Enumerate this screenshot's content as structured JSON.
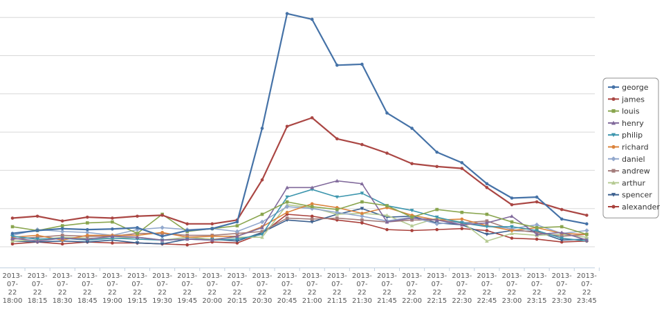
{
  "chart_data": {
    "type": "line",
    "title": "",
    "xlabel": "",
    "ylabel": "",
    "grid": true,
    "legend_position": "right",
    "ylim": [
      0,
      180
    ],
    "categories": [
      [
        "2013-",
        "07-",
        "22",
        "18:00"
      ],
      [
        "2013-",
        "07-",
        "22",
        "18:15"
      ],
      [
        "2013-",
        "07-",
        "22",
        "18:30"
      ],
      [
        "2013-",
        "07-",
        "22",
        "18:45"
      ],
      [
        "2013-",
        "07-",
        "22",
        "19:00"
      ],
      [
        "2013-",
        "07-",
        "22",
        "19:15"
      ],
      [
        "2013-",
        "07-",
        "22",
        "19:30"
      ],
      [
        "2013-",
        "07-",
        "22",
        "19:45"
      ],
      [
        "2013-",
        "07-",
        "22",
        "20:00"
      ],
      [
        "2013-",
        "07-",
        "22",
        "20:15"
      ],
      [
        "2013-",
        "07-",
        "22",
        "20:30"
      ],
      [
        "2013-",
        "07-",
        "22",
        "20:45"
      ],
      [
        "2013-",
        "07-",
        "22",
        "21:00"
      ],
      [
        "2013-",
        "07-",
        "22",
        "21:15"
      ],
      [
        "2013-",
        "07-",
        "22",
        "21:30"
      ],
      [
        "2013-",
        "07-",
        "22",
        "21:45"
      ],
      [
        "2013-",
        "07-",
        "22",
        "22:00"
      ],
      [
        "2013-",
        "07-",
        "22",
        "22:15"
      ],
      [
        "2013-",
        "07-",
        "22",
        "22:30"
      ],
      [
        "2013-",
        "07-",
        "22",
        "22:45"
      ],
      [
        "2013-",
        "07-",
        "22",
        "23:00"
      ],
      [
        "2013-",
        "07-",
        "22",
        "23:15"
      ],
      [
        "2013-",
        "07-",
        "22",
        "23:30"
      ],
      [
        "2013-",
        "07-",
        "22",
        "23:45"
      ]
    ],
    "series": [
      {
        "name": "george",
        "color": "#4572A7",
        "marker": "circle",
        "values": [
          7,
          8.5,
          9.5,
          9,
          9.3,
          10,
          5.5,
          8.5,
          9.5,
          13,
          62,
          122,
          119,
          95,
          95.5,
          70,
          62,
          49.5,
          44,
          33,
          25.5,
          26,
          14.5,
          12
        ]
      },
      {
        "name": "james",
        "color": "#AA4643",
        "marker": "circle",
        "values": [
          15,
          16,
          13.5,
          15.5,
          15,
          16,
          16.5,
          12,
          12,
          14,
          35,
          63,
          67.5,
          56.5,
          53.5,
          49,
          43.5,
          42,
          41,
          31,
          22,
          23.5,
          19.5,
          16.5
        ]
      },
      {
        "name": "louis",
        "color": "#89A54E",
        "marker": "square",
        "values": [
          10.5,
          8.5,
          11,
          12.5,
          13,
          7,
          17,
          8,
          9.5,
          11,
          17,
          23.5,
          21,
          19.5,
          23.5,
          21.5,
          15.5,
          19.5,
          18,
          17,
          13,
          10,
          10.5,
          6.5
        ]
      },
      {
        "name": "henry",
        "color": "#80699B",
        "marker": "triangle",
        "values": [
          4.5,
          3,
          4.5,
          4,
          5.5,
          5,
          3.5,
          4,
          3.5,
          5.5,
          10,
          31,
          31,
          34.5,
          33,
          13,
          15,
          14,
          11.5,
          12.5,
          16,
          6.5,
          7.5,
          3.5
        ]
      },
      {
        "name": "philip",
        "color": "#3D96AE",
        "marker": "triangle-down",
        "values": [
          5.5,
          4,
          4.5,
          3.5,
          4.5,
          4,
          3.5,
          4,
          3.5,
          4,
          6.5,
          26,
          30,
          26,
          28,
          21.5,
          19,
          15.5,
          12.5,
          10.5,
          10.5,
          8.5,
          4.5,
          3
        ]
      },
      {
        "name": "richard",
        "color": "#DB843D",
        "marker": "circle",
        "values": [
          5,
          6,
          3.5,
          6,
          6,
          6,
          7.5,
          5,
          5.5,
          5.5,
          10.5,
          18,
          22.5,
          20.5,
          17.5,
          20.5,
          16.5,
          14,
          14.5,
          11,
          8.5,
          10,
          7,
          6.5
        ]
      },
      {
        "name": "daniel",
        "color": "#92A8CD",
        "marker": "diamond",
        "values": [
          6,
          9,
          8,
          7.5,
          6,
          9,
          10,
          9,
          9.5,
          8,
          13,
          21,
          20,
          18,
          16,
          13.5,
          15.5,
          12,
          13,
          11,
          9.5,
          11.5,
          7,
          8.5
        ]
      },
      {
        "name": "andrew",
        "color": "#A47D7C",
        "marker": "square",
        "values": [
          4,
          5,
          6,
          5.5,
          5.5,
          7,
          7,
          6,
          6,
          7,
          8,
          15,
          14.5,
          15,
          14,
          13,
          14,
          14,
          12.5,
          13.5,
          9,
          7.5,
          5.5,
          6.5
        ]
      },
      {
        "name": "arthur",
        "color": "#B5CA92",
        "marker": "triangle",
        "values": [
          3,
          3.5,
          5,
          4.5,
          4.5,
          5,
          3.5,
          5,
          4,
          5,
          5,
          22,
          20.5,
          17,
          17.5,
          16.5,
          11,
          15,
          13,
          3,
          7,
          6,
          6.5,
          5
        ]
      },
      {
        "name": "spencer",
        "color": "#3B5F8E",
        "marker": "triangle-down",
        "values": [
          3,
          2.5,
          3,
          2.5,
          3.5,
          2,
          1.5,
          4,
          4,
          3,
          7.5,
          14,
          13,
          17,
          20,
          15.5,
          16,
          12.5,
          11.5,
          6.5,
          8.5,
          8,
          3.5,
          4
        ]
      },
      {
        "name": "alexander",
        "color": "#A9403B",
        "marker": "circle",
        "values": [
          1.5,
          2.5,
          1.5,
          2.5,
          2,
          2,
          1.5,
          1,
          2.5,
          2,
          7,
          17,
          16,
          14,
          12.5,
          9,
          8.5,
          9,
          9.5,
          8.5,
          4.5,
          4,
          2.5,
          3
        ]
      }
    ]
  }
}
